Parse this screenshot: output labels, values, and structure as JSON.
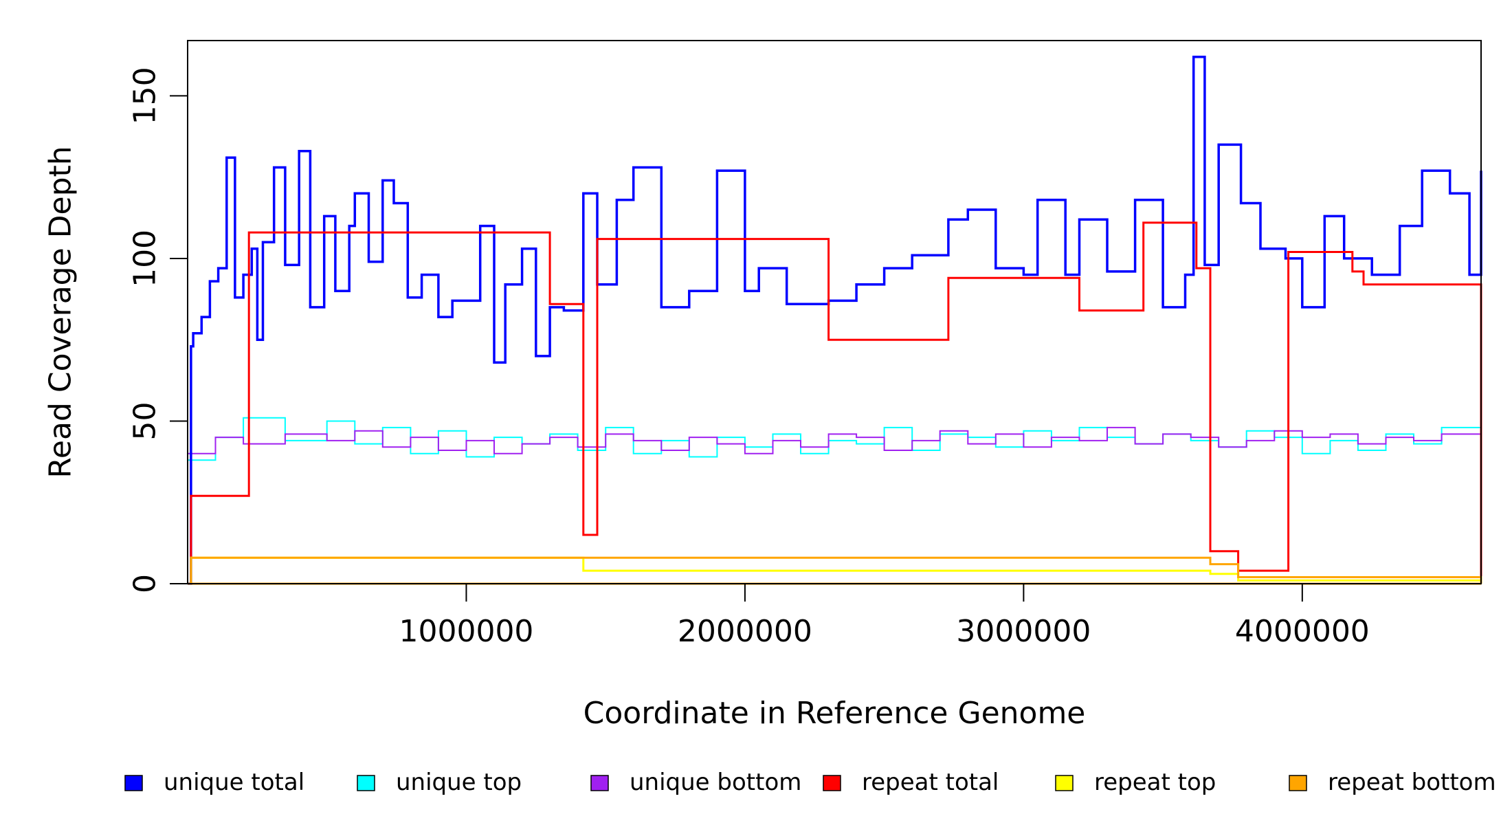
{
  "chart_data": {
    "type": "line",
    "xlabel": "Coordinate in Reference Genome",
    "ylabel": "Read Coverage Depth",
    "xlim": [
      0,
      4641652
    ],
    "ylim": [
      0,
      167
    ],
    "x_ticks": [
      1000000,
      2000000,
      3000000,
      4000000
    ],
    "x_tick_labels": [
      "1000000",
      "2000000",
      "3000000",
      "4000000"
    ],
    "y_ticks": [
      0,
      50,
      100,
      150
    ],
    "y_tick_labels": [
      "0",
      "50",
      "100",
      "150"
    ],
    "grid": false,
    "legend_position": "bottom",
    "series": [
      {
        "name": "unique total",
        "color": "#0000ff",
        "points": [
          [
            0,
            0
          ],
          [
            12000,
            73
          ],
          [
            20000,
            77
          ],
          [
            50000,
            82
          ],
          [
            80000,
            93
          ],
          [
            110000,
            97
          ],
          [
            140000,
            131
          ],
          [
            170000,
            88
          ],
          [
            200000,
            95
          ],
          [
            230000,
            103
          ],
          [
            250000,
            75
          ],
          [
            270000,
            105
          ],
          [
            310000,
            128
          ],
          [
            350000,
            98
          ],
          [
            400000,
            133
          ],
          [
            440000,
            85
          ],
          [
            490000,
            113
          ],
          [
            530000,
            90
          ],
          [
            580000,
            110
          ],
          [
            600000,
            120
          ],
          [
            650000,
            99
          ],
          [
            700000,
            124
          ],
          [
            740000,
            117
          ],
          [
            790000,
            88
          ],
          [
            840000,
            95
          ],
          [
            900000,
            82
          ],
          [
            950000,
            87
          ],
          [
            1050000,
            110
          ],
          [
            1100000,
            68
          ],
          [
            1140000,
            92
          ],
          [
            1200000,
            103
          ],
          [
            1250000,
            70
          ],
          [
            1300000,
            85
          ],
          [
            1350000,
            84
          ],
          [
            1420000,
            120
          ],
          [
            1470000,
            92
          ],
          [
            1540000,
            118
          ],
          [
            1600000,
            128
          ],
          [
            1700000,
            85
          ],
          [
            1800000,
            90
          ],
          [
            1900000,
            127
          ],
          [
            2000000,
            90
          ],
          [
            2050000,
            97
          ],
          [
            2150000,
            86
          ],
          [
            2300000,
            87
          ],
          [
            2400000,
            92
          ],
          [
            2500000,
            97
          ],
          [
            2600000,
            101
          ],
          [
            2730000,
            112
          ],
          [
            2800000,
            115
          ],
          [
            2900000,
            97
          ],
          [
            3000000,
            95
          ],
          [
            3050000,
            118
          ],
          [
            3150000,
            95
          ],
          [
            3200000,
            112
          ],
          [
            3300000,
            96
          ],
          [
            3400000,
            118
          ],
          [
            3500000,
            85
          ],
          [
            3580000,
            95
          ],
          [
            3610000,
            162
          ],
          [
            3650000,
            98
          ],
          [
            3700000,
            135
          ],
          [
            3780000,
            117
          ],
          [
            3850000,
            103
          ],
          [
            3940000,
            100
          ],
          [
            4000000,
            85
          ],
          [
            4080000,
            113
          ],
          [
            4150000,
            100
          ],
          [
            4250000,
            95
          ],
          [
            4350000,
            110
          ],
          [
            4430000,
            127
          ],
          [
            4530000,
            120
          ],
          [
            4600000,
            95
          ],
          [
            4641652,
            127
          ]
        ]
      },
      {
        "name": "unique top",
        "color": "#00ffff",
        "points": [
          [
            0,
            38
          ],
          [
            100000,
            45
          ],
          [
            200000,
            51
          ],
          [
            350000,
            44
          ],
          [
            500000,
            50
          ],
          [
            600000,
            43
          ],
          [
            700000,
            48
          ],
          [
            800000,
            40
          ],
          [
            900000,
            47
          ],
          [
            1000000,
            39
          ],
          [
            1100000,
            45
          ],
          [
            1200000,
            43
          ],
          [
            1300000,
            46
          ],
          [
            1400000,
            41
          ],
          [
            1500000,
            48
          ],
          [
            1600000,
            40
          ],
          [
            1700000,
            44
          ],
          [
            1800000,
            39
          ],
          [
            1900000,
            45
          ],
          [
            2000000,
            42
          ],
          [
            2100000,
            46
          ],
          [
            2200000,
            40
          ],
          [
            2300000,
            44
          ],
          [
            2400000,
            43
          ],
          [
            2500000,
            48
          ],
          [
            2600000,
            41
          ],
          [
            2700000,
            46
          ],
          [
            2800000,
            45
          ],
          [
            2900000,
            42
          ],
          [
            3000000,
            47
          ],
          [
            3100000,
            44
          ],
          [
            3200000,
            48
          ],
          [
            3300000,
            45
          ],
          [
            3400000,
            43
          ],
          [
            3500000,
            46
          ],
          [
            3600000,
            44
          ],
          [
            3700000,
            42
          ],
          [
            3800000,
            47
          ],
          [
            3900000,
            45
          ],
          [
            4000000,
            40
          ],
          [
            4100000,
            44
          ],
          [
            4200000,
            41
          ],
          [
            4300000,
            46
          ],
          [
            4400000,
            43
          ],
          [
            4500000,
            48
          ],
          [
            4641652,
            45
          ]
        ]
      },
      {
        "name": "unique bottom",
        "color": "#a020f0",
        "points": [
          [
            0,
            40
          ],
          [
            100000,
            45
          ],
          [
            200000,
            43
          ],
          [
            350000,
            46
          ],
          [
            500000,
            44
          ],
          [
            600000,
            47
          ],
          [
            700000,
            42
          ],
          [
            800000,
            45
          ],
          [
            900000,
            41
          ],
          [
            1000000,
            44
          ],
          [
            1100000,
            40
          ],
          [
            1200000,
            43
          ],
          [
            1300000,
            45
          ],
          [
            1400000,
            42
          ],
          [
            1500000,
            46
          ],
          [
            1600000,
            44
          ],
          [
            1700000,
            41
          ],
          [
            1800000,
            45
          ],
          [
            1900000,
            43
          ],
          [
            2000000,
            40
          ],
          [
            2100000,
            44
          ],
          [
            2200000,
            42
          ],
          [
            2300000,
            46
          ],
          [
            2400000,
            45
          ],
          [
            2500000,
            41
          ],
          [
            2600000,
            44
          ],
          [
            2700000,
            47
          ],
          [
            2800000,
            43
          ],
          [
            2900000,
            46
          ],
          [
            3000000,
            42
          ],
          [
            3100000,
            45
          ],
          [
            3200000,
            44
          ],
          [
            3300000,
            48
          ],
          [
            3400000,
            43
          ],
          [
            3500000,
            46
          ],
          [
            3600000,
            45
          ],
          [
            3700000,
            42
          ],
          [
            3800000,
            44
          ],
          [
            3900000,
            47
          ],
          [
            4000000,
            45
          ],
          [
            4100000,
            46
          ],
          [
            4200000,
            43
          ],
          [
            4300000,
            45
          ],
          [
            4400000,
            44
          ],
          [
            4500000,
            46
          ],
          [
            4641652,
            44
          ]
        ]
      },
      {
        "name": "repeat total",
        "color": "#ff0000",
        "points": [
          [
            0,
            0
          ],
          [
            12000,
            27
          ],
          [
            220000,
            108
          ],
          [
            1300000,
            86
          ],
          [
            1420000,
            15
          ],
          [
            1470000,
            106
          ],
          [
            2300000,
            75
          ],
          [
            2730000,
            94
          ],
          [
            3200000,
            84
          ],
          [
            3430000,
            111
          ],
          [
            3620000,
            97
          ],
          [
            3670000,
            10
          ],
          [
            3770000,
            4
          ],
          [
            3950000,
            102
          ],
          [
            4180000,
            96
          ],
          [
            4220000,
            92
          ],
          [
            4641652,
            0
          ]
        ]
      },
      {
        "name": "repeat top",
        "color": "#ffff00",
        "points": [
          [
            0,
            0
          ],
          [
            12000,
            8
          ],
          [
            1420000,
            4
          ],
          [
            3670000,
            3
          ],
          [
            3770000,
            1
          ],
          [
            4641652,
            0
          ]
        ]
      },
      {
        "name": "repeat bottom",
        "color": "#ffa500",
        "points": [
          [
            0,
            0
          ],
          [
            12000,
            8
          ],
          [
            1420000,
            8
          ],
          [
            3670000,
            6
          ],
          [
            3770000,
            2
          ],
          [
            4641652,
            0
          ]
        ]
      }
    ]
  },
  "legend": {
    "items": [
      {
        "label": "unique total",
        "color": "#0000ff"
      },
      {
        "label": "unique top",
        "color": "#00ffff"
      },
      {
        "label": "unique bottom",
        "color": "#a020f0"
      },
      {
        "label": "repeat total",
        "color": "#ff0000"
      },
      {
        "label": "repeat top",
        "color": "#ffff00"
      },
      {
        "label": "repeat bottom",
        "color": "#ffa500"
      }
    ]
  }
}
